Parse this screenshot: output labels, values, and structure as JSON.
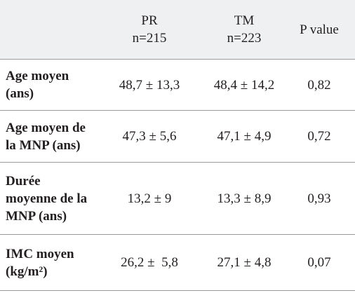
{
  "table": {
    "header": [
      {
        "lines": [
          "PR",
          "n=215"
        ]
      },
      {
        "lines": [
          "TM",
          "n=223"
        ]
      },
      {
        "lines": [
          "P value"
        ]
      }
    ],
    "rows": [
      {
        "label": [
          "Age moyen",
          "(ans)"
        ],
        "cells": [
          "48,7 ± 13,3",
          "48,4 ± 14,2",
          "0,82"
        ]
      },
      {
        "label": [
          "Age moyen de",
          "la MNP (ans)"
        ],
        "cells": [
          "47,3 ± 5,6",
          "47,1 ± 4,9",
          "0,72"
        ]
      },
      {
        "label": [
          "Durée",
          "moyenne de la",
          "MNP (ans)"
        ],
        "cells": [
          "13,2 ± 9",
          "13,3 ± 8,9",
          "0,93"
        ]
      },
      {
        "label": [
          "IMC moyen",
          "(kg/m²)"
        ],
        "cells": [
          "26,2 ±  5,8",
          "27,1 ± 4,8",
          "0,07"
        ]
      }
    ]
  }
}
